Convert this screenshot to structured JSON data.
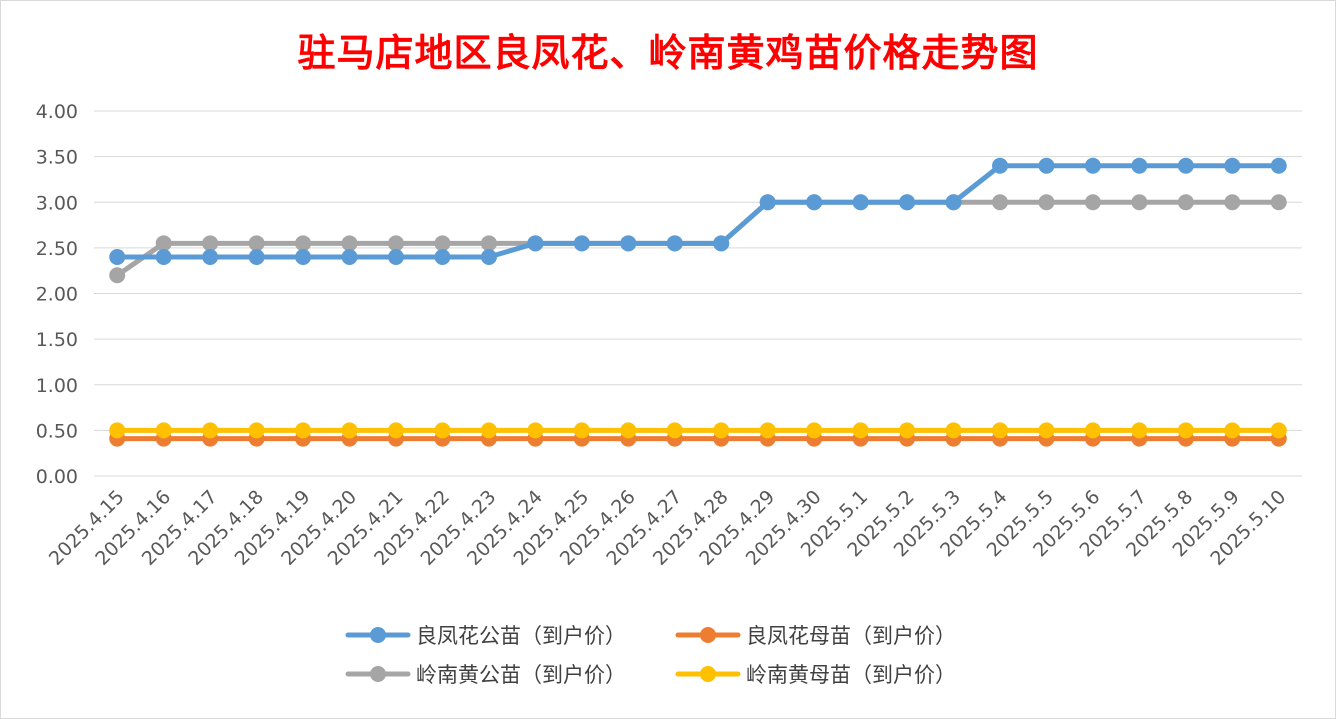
{
  "chart_data": {
    "type": "line",
    "title": "驻马店地区良凤花、岭南黄鸡苗价格走势图",
    "xlabel": "",
    "ylabel": "",
    "ylim": [
      0,
      4
    ],
    "yticks": [
      "0.00",
      "0.50",
      "1.00",
      "1.50",
      "2.00",
      "2.50",
      "3.00",
      "3.50",
      "4.00"
    ],
    "grid": true,
    "legend_position": "bottom",
    "x": [
      "2025.4.15",
      "2025.4.16",
      "2025.4.17",
      "2025.4.18",
      "2025.4.19",
      "2025.4.20",
      "2025.4.21",
      "2025.4.22",
      "2025.4.23",
      "2025.4.24",
      "2025.4.25",
      "2025.4.26",
      "2025.4.27",
      "2025.4.28",
      "2025.4.29",
      "2025.4.30",
      "2025.5.1",
      "2025.5.2",
      "2025.5.3",
      "2025.5.4",
      "2025.5.5",
      "2025.5.6",
      "2025.5.7",
      "2025.5.8",
      "2025.5.9",
      "2025.5.10"
    ],
    "series": [
      {
        "name": "良凤花公苗（到户价）",
        "color": "#5b9bd5",
        "values": [
          2.4,
          2.4,
          2.4,
          2.4,
          2.4,
          2.4,
          2.4,
          2.4,
          2.4,
          2.55,
          2.55,
          2.55,
          2.55,
          2.55,
          3.0,
          3.0,
          3.0,
          3.0,
          3.0,
          3.4,
          3.4,
          3.4,
          3.4,
          3.4,
          3.4,
          3.4
        ]
      },
      {
        "name": "良凤花母苗（到户价）",
        "color": "#ed7d31",
        "values": [
          0.41,
          0.41,
          0.41,
          0.41,
          0.41,
          0.41,
          0.41,
          0.41,
          0.41,
          0.41,
          0.41,
          0.41,
          0.41,
          0.41,
          0.41,
          0.41,
          0.41,
          0.41,
          0.41,
          0.41,
          0.41,
          0.41,
          0.41,
          0.41,
          0.41,
          0.41
        ]
      },
      {
        "name": "岭南黄公苗（到户价）",
        "color": "#a5a5a5",
        "values": [
          2.2,
          2.55,
          2.55,
          2.55,
          2.55,
          2.55,
          2.55,
          2.55,
          2.55,
          2.55,
          2.55,
          2.55,
          2.55,
          2.55,
          3.0,
          3.0,
          3.0,
          3.0,
          3.0,
          3.0,
          3.0,
          3.0,
          3.0,
          3.0,
          3.0,
          3.0
        ]
      },
      {
        "name": "岭南黄母苗（到户价）",
        "color": "#ffc000",
        "values": [
          0.5,
          0.5,
          0.5,
          0.5,
          0.5,
          0.5,
          0.5,
          0.5,
          0.5,
          0.5,
          0.5,
          0.5,
          0.5,
          0.5,
          0.5,
          0.5,
          0.5,
          0.5,
          0.5,
          0.5,
          0.5,
          0.5,
          0.5,
          0.5,
          0.5,
          0.5
        ]
      }
    ]
  }
}
